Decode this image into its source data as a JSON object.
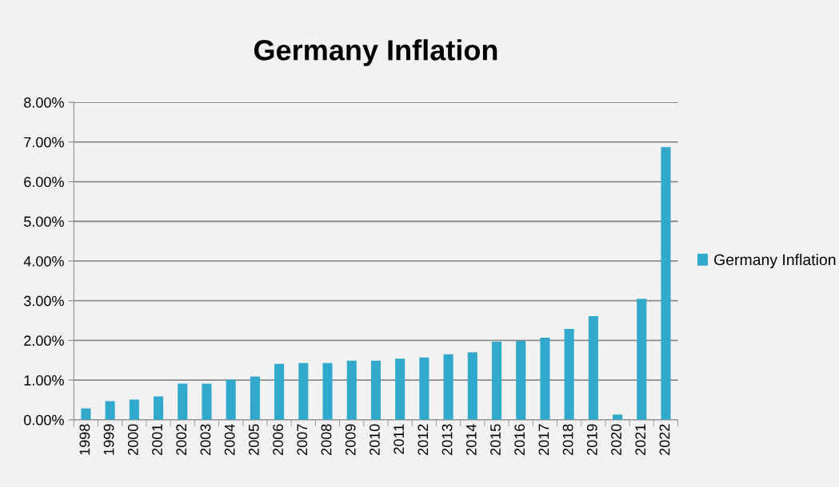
{
  "chart_data": {
    "type": "bar",
    "title": "Germany Inflation",
    "categories": [
      "1998",
      "1999",
      "2000",
      "2001",
      "2002",
      "2003",
      "2004",
      "2005",
      "2006",
      "2007",
      "2008",
      "2009",
      "2010",
      "2011",
      "2012",
      "2013",
      "2014",
      "2015",
      "2016",
      "2017",
      "2018",
      "2019",
      "2020",
      "2021",
      "2022"
    ],
    "series": [
      {
        "name": "Germany Inflation",
        "color": "#31a9cc",
        "values": [
          0.29,
          0.47,
          0.51,
          0.59,
          0.91,
          0.91,
          1.01,
          1.09,
          1.41,
          1.43,
          1.43,
          1.49,
          1.49,
          1.54,
          1.57,
          1.65,
          1.7,
          1.97,
          1.99,
          2.07,
          2.29,
          2.61,
          0.13,
          3.05,
          6.87
        ]
      }
    ],
    "ylim": [
      0,
      8
    ],
    "yticks": [
      {
        "value": 0,
        "label": "0.00%"
      },
      {
        "value": 1,
        "label": "1.00%"
      },
      {
        "value": 2,
        "label": "2.00%"
      },
      {
        "value": 3,
        "label": "3.00%"
      },
      {
        "value": 4,
        "label": "4.00%"
      },
      {
        "value": 5,
        "label": "5.00%"
      },
      {
        "value": 6,
        "label": "6.00%"
      },
      {
        "value": 7,
        "label": "7.00%"
      },
      {
        "value": 8,
        "label": "8.00%"
      }
    ],
    "grid": "y",
    "legend": "right"
  }
}
